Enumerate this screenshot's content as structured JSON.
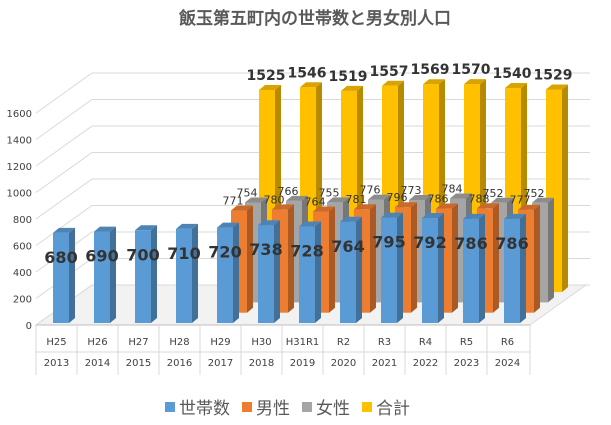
{
  "chart_data": {
    "type": "bar",
    "title": "飯玉第五町内の世帯数と男女別人口",
    "categories": [
      "H25",
      "H26",
      "H27",
      "H28",
      "H29",
      "H30",
      "H31R1",
      "R2",
      "R3",
      "R4",
      "R5",
      "R6"
    ],
    "categories_year": [
      "2013",
      "2014",
      "2015",
      "2016",
      "2017",
      "2018",
      "2019",
      "2020",
      "2021",
      "2022",
      "2023",
      "2024"
    ],
    "ylim": [
      0,
      1600
    ],
    "yticks": [
      "0",
      "200",
      "400",
      "600",
      "800",
      "1000",
      "1200",
      "1400",
      "1600"
    ],
    "grid": true,
    "legend_position": "bottom",
    "series": [
      {
        "name": "世帯数",
        "color": "#5b9bd5",
        "values": [
          680,
          690,
          700,
          710,
          720,
          738,
          728,
          764,
          795,
          792,
          786,
          786
        ]
      },
      {
        "name": "男性",
        "color": "#ed7d31",
        "values": [
          null,
          null,
          null,
          null,
          771,
          780,
          764,
          781,
          796,
          786,
          788,
          777
        ]
      },
      {
        "name": "女性",
        "color": "#a5a5a5",
        "values": [
          null,
          null,
          null,
          null,
          754,
          766,
          755,
          776,
          773,
          784,
          752,
          752
        ]
      },
      {
        "name": "合計",
        "color": "#ffc000",
        "values": [
          null,
          null,
          null,
          null,
          1525,
          1546,
          1519,
          1557,
          1569,
          1570,
          1540,
          1529
        ]
      }
    ]
  }
}
